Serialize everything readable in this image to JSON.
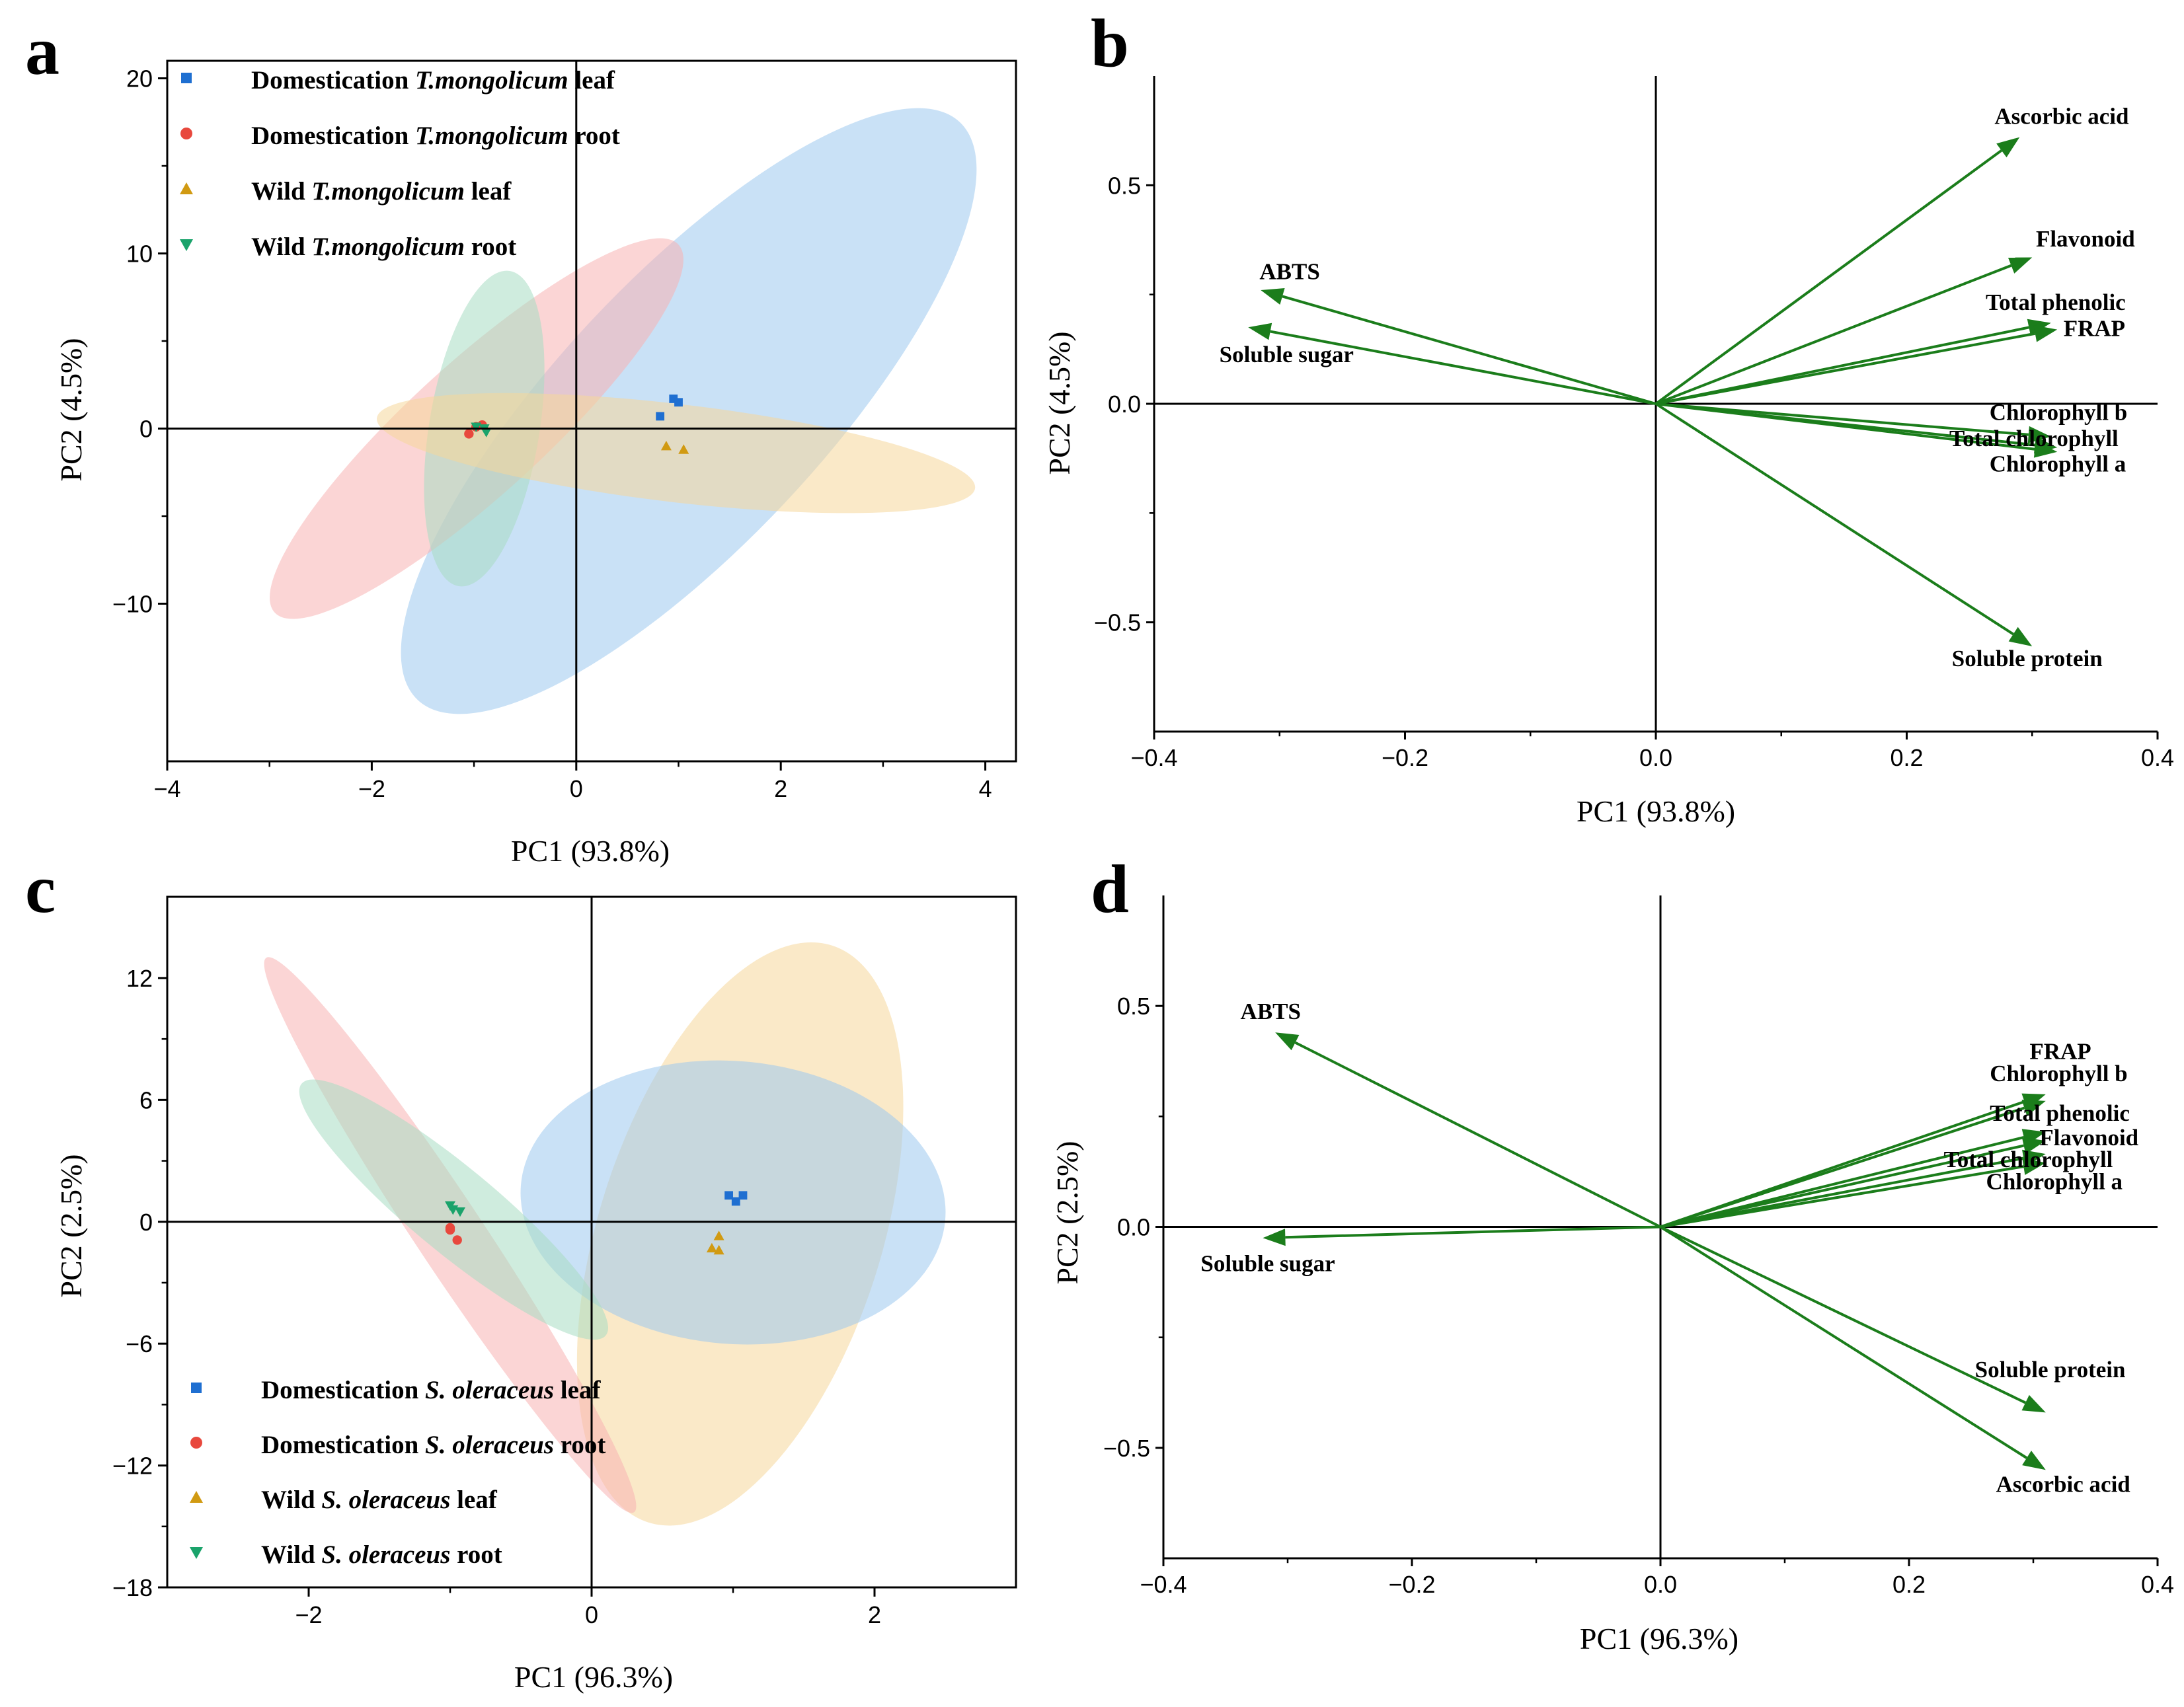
{
  "figure": {
    "arrow_color": "#1b7d1b",
    "group_colors": {
      "dom_leaf": "#1f6fd1",
      "dom_root": "#e8483d",
      "wild_leaf": "#d19a12",
      "wild_root": "#1aa36b"
    },
    "ellipse_colors": {
      "dom_leaf": "#9cc8ee",
      "dom_root": "#f7b3b3",
      "wild_leaf": "#f5d79a",
      "wild_root": "#a8dcc2"
    }
  },
  "chart_data": [
    {
      "id": "a",
      "letter": "a",
      "type": "scatter",
      "xlabel": "PC1 (93.8%)",
      "ylabel": "PC2 (4.5%)",
      "xlim": [
        -4,
        4.3
      ],
      "ylim": [
        -19,
        21
      ],
      "xticks": [
        -4,
        -2,
        0,
        2,
        4
      ],
      "yticks": [
        -10,
        0,
        10,
        20
      ],
      "xtick_labels": [
        "−4",
        "−2",
        "0",
        "2",
        "4"
      ],
      "ytick_labels": [
        "−10",
        "0",
        "10",
        "20"
      ],
      "legend": {
        "position": "top-left",
        "entries": [
          {
            "group": "dom_leaf",
            "marker": "square",
            "parts": [
              {
                "t": "Domestication ",
                "i": false
              },
              {
                "t": "T.mongolicum",
                "i": true
              },
              {
                "t": " leaf",
                "i": false
              }
            ]
          },
          {
            "group": "dom_root",
            "marker": "circle",
            "parts": [
              {
                "t": "Domestication ",
                "i": false
              },
              {
                "t": "T.mongolicum",
                "i": true
              },
              {
                "t": " root",
                "i": false
              }
            ]
          },
          {
            "group": "wild_leaf",
            "marker": "triangle-up",
            "parts": [
              {
                "t": "Wild ",
                "i": false
              },
              {
                "t": "T.mongolicum",
                "i": true
              },
              {
                "t": " leaf",
                "i": false
              }
            ]
          },
          {
            "group": "wild_root",
            "marker": "triangle-down",
            "parts": [
              {
                "t": "Wild ",
                "i": false
              },
              {
                "t": "T.mongolicum",
                "i": true
              },
              {
                "t": " root",
                "i": false
              }
            ]
          }
        ]
      },
      "ellipses": [
        {
          "group": "dom_leaf",
          "p1": [
            -1.55,
            -15.5
          ],
          "p2": [
            3.75,
            17.5
          ],
          "minor": 1.3
        },
        {
          "group": "dom_root",
          "p1": [
            -2.95,
            -10.5
          ],
          "p2": [
            1.0,
            10.5
          ],
          "minor": 0.65
        },
        {
          "group": "wild_root",
          "p1": [
            -1.15,
            -9.0
          ],
          "p2": [
            -0.65,
            9.0
          ],
          "minor": 0.54
        },
        {
          "group": "wild_leaf",
          "p1": [
            -1.95,
            0.6
          ],
          "p2": [
            3.9,
            -3.4
          ],
          "minor": 0.48
        }
      ],
      "series": [
        {
          "group": "dom_leaf",
          "marker": "square",
          "points": [
            [
              0.95,
              1.7
            ],
            [
              1.0,
              1.5
            ],
            [
              0.82,
              0.7
            ]
          ]
        },
        {
          "group": "dom_root",
          "marker": "circle",
          "points": [
            [
              -0.92,
              0.2
            ],
            [
              -1.05,
              -0.3
            ],
            [
              -0.98,
              0.1
            ]
          ]
        },
        {
          "group": "wild_leaf",
          "marker": "triangle-up",
          "points": [
            [
              0.88,
              -1.0
            ],
            [
              1.05,
              -1.2
            ]
          ]
        },
        {
          "group": "wild_root",
          "marker": "triangle-down",
          "points": [
            [
              -0.9,
              0.0
            ],
            [
              -0.98,
              0.1
            ],
            [
              -0.88,
              -0.2
            ]
          ]
        }
      ]
    },
    {
      "id": "b",
      "letter": "b",
      "type": "biplot",
      "xlabel": "PC1 (93.8%)",
      "ylabel": "PC2 (4.5%)",
      "xlim": [
        -0.4,
        0.4
      ],
      "ylim": [
        -0.75,
        0.75
      ],
      "xticks": [
        -0.4,
        -0.2,
        0.0,
        0.2,
        0.4
      ],
      "yticks": [
        -0.5,
        0.0,
        0.5
      ],
      "xtick_labels": [
        "−0.4",
        "−0.2",
        "0.0",
        "0.2",
        "0.4"
      ],
      "ytick_labels": [
        "−0.5",
        "0.0",
        "0.5"
      ],
      "loadings": [
        {
          "name": "Ascorbic acid",
          "x": 0.29,
          "y": 0.61
        },
        {
          "name": "Flavonoid",
          "x": 0.3,
          "y": 0.335
        },
        {
          "name": "Total phenolic",
          "x": 0.315,
          "y": 0.185
        },
        {
          "name": "FRAP",
          "x": 0.32,
          "y": 0.17
        },
        {
          "name": "Chlorophyll b",
          "x": 0.315,
          "y": -0.075
        },
        {
          "name": "Total chlorophyll",
          "x": 0.32,
          "y": -0.1
        },
        {
          "name": "Chlorophyll a",
          "x": 0.32,
          "y": -0.11
        },
        {
          "name": "Soluble protein",
          "x": 0.3,
          "y": -0.555
        },
        {
          "name": "ABTS",
          "x": -0.315,
          "y": 0.26
        },
        {
          "name": "Soluble sugar",
          "x": -0.325,
          "y": 0.175
        }
      ],
      "labels": [
        {
          "text": "Ascorbic acid",
          "x": 0.27,
          "y": 0.64,
          "anchor": "start"
        },
        {
          "text": "Flavonoid",
          "x": 0.303,
          "y": 0.36,
          "anchor": "start"
        },
        {
          "text": "Total phenolic",
          "x": 0.263,
          "y": 0.215,
          "anchor": "start"
        },
        {
          "text": "FRAP",
          "x": 0.325,
          "y": 0.155,
          "anchor": "start"
        },
        {
          "text": "Chlorophyll b",
          "x": 0.266,
          "y": -0.037,
          "anchor": "start"
        },
        {
          "text": "Total chlorophyll",
          "x": 0.234,
          "y": -0.097,
          "anchor": "start"
        },
        {
          "text": "Chlorophyll a",
          "x": 0.266,
          "y": -0.155,
          "anchor": "start"
        },
        {
          "text": "Soluble protein",
          "x": 0.236,
          "y": -0.6,
          "anchor": "start"
        },
        {
          "text": "ABTS",
          "x": -0.316,
          "y": 0.285,
          "anchor": "start"
        },
        {
          "text": "Soluble sugar",
          "x": -0.348,
          "y": 0.095,
          "anchor": "start"
        }
      ]
    },
    {
      "id": "c",
      "letter": "c",
      "type": "scatter",
      "xlabel": "PC1 (96.3%)",
      "ylabel": "PC2 (2.5%)",
      "xlim": [
        -3,
        3
      ],
      "ylim": [
        -18,
        16
      ],
      "xticks": [
        -2,
        0,
        2
      ],
      "yticks": [
        -18,
        -12,
        -6,
        0,
        6,
        12
      ],
      "xtick_labels": [
        "−2",
        "0",
        "2"
      ],
      "ytick_labels": [
        "−18",
        "−12",
        "−6",
        "0",
        "6",
        "12"
      ],
      "legend": {
        "position": "bottom-left",
        "entries": [
          {
            "group": "dom_leaf",
            "marker": "square",
            "parts": [
              {
                "t": "Domestication ",
                "i": false
              },
              {
                "t": "S. oleraceus",
                "i": true
              },
              {
                "t": " leaf",
                "i": false
              }
            ]
          },
          {
            "group": "dom_root",
            "marker": "circle",
            "parts": [
              {
                "t": "Domestication ",
                "i": false
              },
              {
                "t": "S. oleraceus",
                "i": true
              },
              {
                "t": " root",
                "i": false
              }
            ]
          },
          {
            "group": "wild_leaf",
            "marker": "triangle-up",
            "parts": [
              {
                "t": "Wild ",
                "i": false
              },
              {
                "t": "S. oleraceus",
                "i": true
              },
              {
                "t": " leaf",
                "i": false
              }
            ]
          },
          {
            "group": "wild_root",
            "marker": "triangle-down",
            "parts": [
              {
                "t": "Wild ",
                "i": false
              },
              {
                "t": "S. oleraceus",
                "i": true
              },
              {
                "t": " root",
                "i": false
              }
            ]
          }
        ]
      },
      "ellipses": [
        {
          "group": "wild_leaf",
          "p1": [
            0.4,
            -14.8
          ],
          "p2": [
            1.7,
            13.6
          ],
          "minor": 1.0
        },
        {
          "group": "dom_leaf",
          "p1": [
            -0.5,
            1.8
          ],
          "p2": [
            2.5,
            0.1
          ],
          "minor": 1.0
        },
        {
          "group": "dom_root",
          "p1": [
            -2.3,
            13.0
          ],
          "p2": [
            0.3,
            -14.3
          ],
          "minor": 0.24
        },
        {
          "group": "wild_root",
          "p1": [
            -2.05,
            6.8
          ],
          "p2": [
            0.1,
            -5.6
          ],
          "minor": 0.3
        }
      ],
      "series": [
        {
          "group": "dom_leaf",
          "marker": "square",
          "points": [
            [
              0.97,
              1.3
            ],
            [
              1.07,
              1.3
            ],
            [
              1.02,
              1.0
            ]
          ]
        },
        {
          "group": "dom_root",
          "marker": "circle",
          "points": [
            [
              -1.0,
              -0.3
            ],
            [
              -0.95,
              -0.9
            ],
            [
              -1.0,
              -0.4
            ]
          ]
        },
        {
          "group": "wild_leaf",
          "marker": "triangle-up",
          "points": [
            [
              0.9,
              -0.7
            ],
            [
              0.85,
              -1.3
            ],
            [
              0.9,
              -1.4
            ]
          ]
        },
        {
          "group": "wild_root",
          "marker": "triangle-down",
          "points": [
            [
              -1.0,
              0.8
            ],
            [
              -0.93,
              0.5
            ],
            [
              -0.98,
              0.6
            ]
          ]
        }
      ]
    },
    {
      "id": "d",
      "letter": "d",
      "type": "biplot",
      "xlabel": "PC1 (96.3%)",
      "ylabel": "PC2 (2.5%)",
      "xlim": [
        -0.4,
        0.4
      ],
      "ylim": [
        -0.75,
        0.75
      ],
      "xticks": [
        -0.4,
        -0.2,
        0.0,
        0.2,
        0.4
      ],
      "yticks": [
        -0.5,
        0.0,
        0.5
      ],
      "xtick_labels": [
        "−0.4",
        "−0.2",
        "0.0",
        "0.2",
        "0.4"
      ],
      "ytick_labels": [
        "−0.5",
        "0.0",
        "0.5"
      ],
      "loadings": [
        {
          "name": "FRAP",
          "x": 0.31,
          "y": 0.3
        },
        {
          "name": "Chlorophyll b",
          "x": 0.31,
          "y": 0.285
        },
        {
          "name": "Total phenolic",
          "x": 0.31,
          "y": 0.215
        },
        {
          "name": "Flavonoid",
          "x": 0.31,
          "y": 0.195
        },
        {
          "name": "Total chlorophyll",
          "x": 0.31,
          "y": 0.165
        },
        {
          "name": "Chlorophyll a",
          "x": 0.31,
          "y": 0.145
        },
        {
          "name": "Soluble protein",
          "x": 0.31,
          "y": -0.42
        },
        {
          "name": "Ascorbic acid",
          "x": 0.31,
          "y": -0.55
        },
        {
          "name": "ABTS",
          "x": -0.31,
          "y": 0.44
        },
        {
          "name": "Soluble sugar",
          "x": -0.32,
          "y": -0.025
        }
      ],
      "labels": [
        {
          "text": "FRAP",
          "x": 0.297,
          "y": 0.38,
          "anchor": "start"
        },
        {
          "text": "Chlorophyll b",
          "x": 0.265,
          "y": 0.33,
          "anchor": "start"
        },
        {
          "text": "Total phenolic",
          "x": 0.265,
          "y": 0.24,
          "anchor": "start"
        },
        {
          "text": "Flavonoid",
          "x": 0.305,
          "y": 0.185,
          "anchor": "start"
        },
        {
          "text": "Total chlorophyll",
          "x": 0.228,
          "y": 0.135,
          "anchor": "start"
        },
        {
          "text": "Chlorophyll a",
          "x": 0.262,
          "y": 0.085,
          "anchor": "start"
        },
        {
          "text": "Soluble protein",
          "x": 0.253,
          "y": -0.34,
          "anchor": "start"
        },
        {
          "text": "Ascorbic acid",
          "x": 0.27,
          "y": -0.6,
          "anchor": "start"
        },
        {
          "text": "ABTS",
          "x": -0.338,
          "y": 0.47,
          "anchor": "start"
        },
        {
          "text": "Soluble sugar",
          "x": -0.37,
          "y": -0.1,
          "anchor": "start"
        }
      ]
    }
  ]
}
